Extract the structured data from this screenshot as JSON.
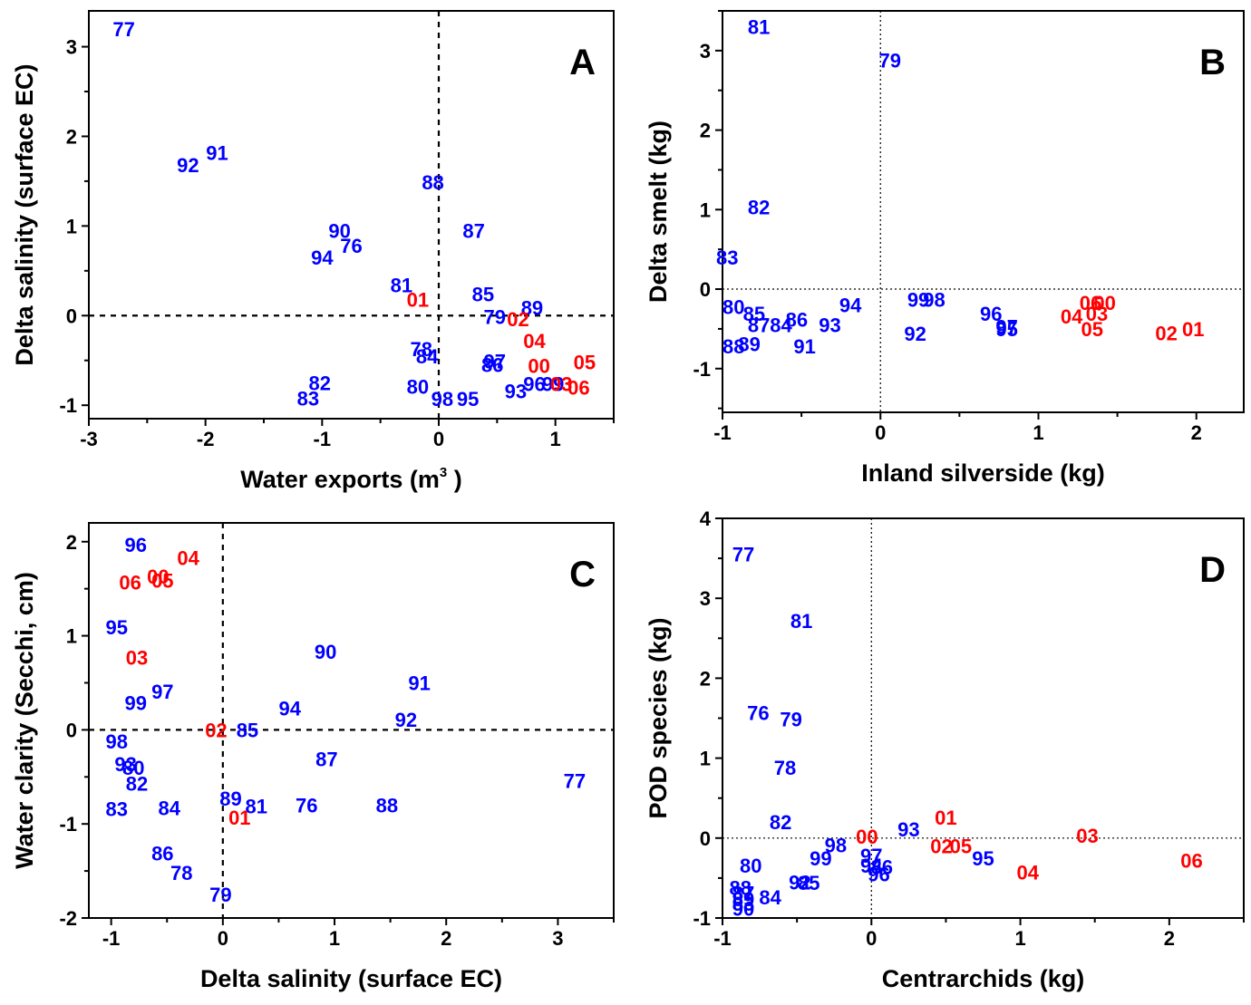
{
  "colors": {
    "early_years": "#0000ff",
    "recent_years": "#ff0000",
    "axis": "#000000"
  },
  "chart_data": [
    {
      "type": "scatter",
      "panel": "A",
      "xlabel": "Water exports (m",
      "xlabel_sup": "3",
      "xlabel_tail": " )",
      "ylabel": "Delta salinity (surface EC)",
      "xlim": [
        -3,
        1.5
      ],
      "ylim": [
        -1.15,
        3.4
      ],
      "xticks": [
        -3,
        -2,
        -1,
        0,
        1
      ],
      "yticks": [
        -1,
        0,
        1,
        2,
        3
      ],
      "zero_line_style": "dashed",
      "points": [
        {
          "label": "77",
          "x": -2.7,
          "y": 3.2,
          "group": "early"
        },
        {
          "label": "92",
          "x": -2.15,
          "y": 1.68,
          "group": "early"
        },
        {
          "label": "91",
          "x": -1.9,
          "y": 1.82,
          "group": "early"
        },
        {
          "label": "88",
          "x": -0.05,
          "y": 1.49,
          "group": "early"
        },
        {
          "label": "90",
          "x": -0.85,
          "y": 0.95,
          "group": "early"
        },
        {
          "label": "87",
          "x": 0.3,
          "y": 0.95,
          "group": "early"
        },
        {
          "label": "76",
          "x": -0.75,
          "y": 0.78,
          "group": "early"
        },
        {
          "label": "94",
          "x": -1.0,
          "y": 0.65,
          "group": "early"
        },
        {
          "label": "81",
          "x": -0.32,
          "y": 0.34,
          "group": "early"
        },
        {
          "label": "01",
          "x": -0.18,
          "y": 0.18,
          "group": "recent"
        },
        {
          "label": "85",
          "x": 0.38,
          "y": 0.24,
          "group": "early"
        },
        {
          "label": "89",
          "x": 0.8,
          "y": 0.09,
          "group": "early"
        },
        {
          "label": "79",
          "x": 0.48,
          "y": -0.01,
          "group": "early"
        },
        {
          "label": "02",
          "x": 0.68,
          "y": -0.04,
          "group": "recent"
        },
        {
          "label": "04",
          "x": 0.82,
          "y": -0.28,
          "group": "recent"
        },
        {
          "label": "78",
          "x": -0.15,
          "y": -0.37,
          "group": "early"
        },
        {
          "label": "84",
          "x": -0.1,
          "y": -0.45,
          "group": "early"
        },
        {
          "label": "97",
          "x": 0.48,
          "y": -0.51,
          "group": "early"
        },
        {
          "label": "86",
          "x": 0.46,
          "y": -0.55,
          "group": "early"
        },
        {
          "label": "00",
          "x": 0.86,
          "y": -0.56,
          "group": "recent"
        },
        {
          "label": "05",
          "x": 1.25,
          "y": -0.52,
          "group": "recent"
        },
        {
          "label": "82",
          "x": -1.02,
          "y": -0.75,
          "group": "early"
        },
        {
          "label": "80",
          "x": -0.18,
          "y": -0.79,
          "group": "early"
        },
        {
          "label": "96",
          "x": 0.82,
          "y": -0.76,
          "group": "early"
        },
        {
          "label": "99",
          "x": 0.98,
          "y": -0.76,
          "group": "early"
        },
        {
          "label": "03",
          "x": 1.05,
          "y": -0.76,
          "group": "recent"
        },
        {
          "label": "06",
          "x": 1.2,
          "y": -0.8,
          "group": "recent"
        },
        {
          "label": "93",
          "x": 0.66,
          "y": -0.84,
          "group": "early"
        },
        {
          "label": "83",
          "x": -1.12,
          "y": -0.92,
          "group": "early"
        },
        {
          "label": "98",
          "x": 0.03,
          "y": -0.93,
          "group": "early"
        },
        {
          "label": "95",
          "x": 0.25,
          "y": -0.93,
          "group": "early"
        }
      ]
    },
    {
      "type": "scatter",
      "panel": "B",
      "xlabel": "Inland silverside (kg)",
      "ylabel": "Delta smelt (kg)",
      "xlim": [
        -1,
        2.3
      ],
      "ylim": [
        -1.55,
        3.5
      ],
      "xticks": [
        -1,
        0,
        1,
        2
      ],
      "yticks": [
        -1,
        0,
        1,
        2,
        3
      ],
      "zero_line_style": "dotted",
      "points": [
        {
          "label": "81",
          "x": -0.77,
          "y": 3.3,
          "group": "early"
        },
        {
          "label": "79",
          "x": 0.06,
          "y": 2.88,
          "group": "early"
        },
        {
          "label": "82",
          "x": -0.77,
          "y": 1.03,
          "group": "early"
        },
        {
          "label": "83",
          "x": -0.97,
          "y": 0.4,
          "group": "early"
        },
        {
          "label": "99",
          "x": 0.24,
          "y": -0.13,
          "group": "early"
        },
        {
          "label": "98",
          "x": 0.34,
          "y": -0.13,
          "group": "early"
        },
        {
          "label": "80",
          "x": -0.93,
          "y": -0.22,
          "group": "early"
        },
        {
          "label": "94",
          "x": -0.19,
          "y": -0.2,
          "group": "early"
        },
        {
          "label": "06",
          "x": 1.33,
          "y": -0.17,
          "group": "recent"
        },
        {
          "label": "00",
          "x": 1.42,
          "y": -0.17,
          "group": "recent"
        },
        {
          "label": "85",
          "x": -0.8,
          "y": -0.31,
          "group": "early"
        },
        {
          "label": "96",
          "x": 0.7,
          "y": -0.31,
          "group": "early"
        },
        {
          "label": "04",
          "x": 1.21,
          "y": -0.34,
          "group": "recent"
        },
        {
          "label": "03",
          "x": 1.37,
          "y": -0.31,
          "group": "recent"
        },
        {
          "label": "86",
          "x": -0.53,
          "y": -0.38,
          "group": "early"
        },
        {
          "label": "87",
          "x": -0.77,
          "y": -0.45,
          "group": "early"
        },
        {
          "label": "84",
          "x": -0.63,
          "y": -0.45,
          "group": "early"
        },
        {
          "label": "93",
          "x": -0.32,
          "y": -0.45,
          "group": "early"
        },
        {
          "label": "97",
          "x": 0.8,
          "y": -0.47,
          "group": "early"
        },
        {
          "label": "95",
          "x": 0.8,
          "y": -0.5,
          "group": "early"
        },
        {
          "label": "05",
          "x": 1.34,
          "y": -0.5,
          "group": "recent"
        },
        {
          "label": "01",
          "x": 1.98,
          "y": -0.5,
          "group": "recent"
        },
        {
          "label": "02",
          "x": 1.81,
          "y": -0.55,
          "group": "recent"
        },
        {
          "label": "92",
          "x": 0.22,
          "y": -0.56,
          "group": "early"
        },
        {
          "label": "89",
          "x": -0.83,
          "y": -0.69,
          "group": "early"
        },
        {
          "label": "91",
          "x": -0.48,
          "y": -0.72,
          "group": "early"
        },
        {
          "label": "88",
          "x": -0.93,
          "y": -0.72,
          "group": "early"
        }
      ]
    },
    {
      "type": "scatter",
      "panel": "C",
      "xlabel": "Delta salinity (surface EC)",
      "ylabel": "Water clarity (Secchi, cm)",
      "xlim": [
        -1.2,
        3.5
      ],
      "ylim": [
        -2,
        2.2
      ],
      "xticks": [
        -1,
        0,
        1,
        2,
        3
      ],
      "yticks": [
        -2,
        -1,
        0,
        1,
        2
      ],
      "zero_line_style": "dashed",
      "points": [
        {
          "label": "96",
          "x": -0.78,
          "y": 1.97,
          "group": "early"
        },
        {
          "label": "04",
          "x": -0.31,
          "y": 1.83,
          "group": "recent"
        },
        {
          "label": "00",
          "x": -0.58,
          "y": 1.63,
          "group": "recent"
        },
        {
          "label": "06",
          "x": -0.83,
          "y": 1.57,
          "group": "recent"
        },
        {
          "label": "05",
          "x": -0.54,
          "y": 1.59,
          "group": "recent"
        },
        {
          "label": "95",
          "x": -0.95,
          "y": 1.09,
          "group": "early"
        },
        {
          "label": "90",
          "x": 0.92,
          "y": 0.83,
          "group": "early"
        },
        {
          "label": "03",
          "x": -0.77,
          "y": 0.77,
          "group": "recent"
        },
        {
          "label": "91",
          "x": 1.76,
          "y": 0.5,
          "group": "early"
        },
        {
          "label": "97",
          "x": -0.54,
          "y": 0.41,
          "group": "early"
        },
        {
          "label": "99",
          "x": -0.78,
          "y": 0.29,
          "group": "early"
        },
        {
          "label": "94",
          "x": 0.6,
          "y": 0.23,
          "group": "early"
        },
        {
          "label": "92",
          "x": 1.64,
          "y": 0.11,
          "group": "early"
        },
        {
          "label": "02",
          "x": -0.06,
          "y": 0.0,
          "group": "recent"
        },
        {
          "label": "85",
          "x": 0.22,
          "y": 0.0,
          "group": "early"
        },
        {
          "label": "98",
          "x": -0.95,
          "y": -0.12,
          "group": "early"
        },
        {
          "label": "87",
          "x": 0.93,
          "y": -0.31,
          "group": "early"
        },
        {
          "label": "93",
          "x": -0.87,
          "y": -0.36,
          "group": "early"
        },
        {
          "label": "80",
          "x": -0.8,
          "y": -0.4,
          "group": "early"
        },
        {
          "label": "82",
          "x": -0.77,
          "y": -0.57,
          "group": "early"
        },
        {
          "label": "77",
          "x": 3.15,
          "y": -0.54,
          "group": "early"
        },
        {
          "label": "89",
          "x": 0.07,
          "y": -0.73,
          "group": "early"
        },
        {
          "label": "76",
          "x": 0.75,
          "y": -0.8,
          "group": "early"
        },
        {
          "label": "88",
          "x": 1.47,
          "y": -0.8,
          "group": "early"
        },
        {
          "label": "81",
          "x": 0.3,
          "y": -0.81,
          "group": "early"
        },
        {
          "label": "83",
          "x": -0.95,
          "y": -0.84,
          "group": "early"
        },
        {
          "label": "84",
          "x": -0.48,
          "y": -0.83,
          "group": "early"
        },
        {
          "label": "01",
          "x": 0.15,
          "y": -0.93,
          "group": "recent"
        },
        {
          "label": "86",
          "x": -0.54,
          "y": -1.31,
          "group": "early"
        },
        {
          "label": "78",
          "x": -0.37,
          "y": -1.52,
          "group": "early"
        },
        {
          "label": "79",
          "x": -0.02,
          "y": -1.75,
          "group": "early"
        }
      ]
    },
    {
      "type": "scatter",
      "panel": "D",
      "xlabel": "Centrarchids (kg)",
      "ylabel": "POD species (kg)",
      "xlim": [
        -1,
        2.5
      ],
      "ylim": [
        -1,
        4
      ],
      "xticks": [
        -1,
        0,
        1,
        2
      ],
      "yticks": [
        -1,
        0,
        1,
        2,
        3,
        4
      ],
      "zero_line_style": "dotted",
      "points": [
        {
          "label": "77",
          "x": -0.86,
          "y": 3.55,
          "group": "early"
        },
        {
          "label": "81",
          "x": -0.47,
          "y": 2.72,
          "group": "early"
        },
        {
          "label": "76",
          "x": -0.76,
          "y": 1.57,
          "group": "early"
        },
        {
          "label": "79",
          "x": -0.54,
          "y": 1.49,
          "group": "early"
        },
        {
          "label": "78",
          "x": -0.58,
          "y": 0.88,
          "group": "early"
        },
        {
          "label": "82",
          "x": -0.61,
          "y": 0.2,
          "group": "early"
        },
        {
          "label": "01",
          "x": 0.5,
          "y": 0.26,
          "group": "recent"
        },
        {
          "label": "93",
          "x": 0.25,
          "y": 0.11,
          "group": "early"
        },
        {
          "label": "03",
          "x": 1.45,
          "y": 0.03,
          "group": "recent"
        },
        {
          "label": "00",
          "x": -0.03,
          "y": 0.02,
          "group": "recent"
        },
        {
          "label": "98",
          "x": -0.24,
          "y": -0.09,
          "group": "early"
        },
        {
          "label": "02",
          "x": 0.47,
          "y": -0.1,
          "group": "recent"
        },
        {
          "label": "05",
          "x": 0.6,
          "y": -0.1,
          "group": "recent"
        },
        {
          "label": "99",
          "x": -0.34,
          "y": -0.25,
          "group": "early"
        },
        {
          "label": "97",
          "x": 0.0,
          "y": -0.22,
          "group": "early"
        },
        {
          "label": "95",
          "x": 0.75,
          "y": -0.25,
          "group": "early"
        },
        {
          "label": "06",
          "x": 2.15,
          "y": -0.28,
          "group": "recent"
        },
        {
          "label": "80",
          "x": -0.81,
          "y": -0.34,
          "group": "early"
        },
        {
          "label": "94",
          "x": 0.0,
          "y": -0.34,
          "group": "early"
        },
        {
          "label": "86",
          "x": 0.07,
          "y": -0.36,
          "group": "early"
        },
        {
          "label": "96",
          "x": 0.05,
          "y": -0.45,
          "group": "early"
        },
        {
          "label": "04",
          "x": 1.05,
          "y": -0.43,
          "group": "recent"
        },
        {
          "label": "92",
          "x": -0.48,
          "y": -0.55,
          "group": "early"
        },
        {
          "label": "85",
          "x": -0.42,
          "y": -0.56,
          "group": "early"
        },
        {
          "label": "88",
          "x": -0.88,
          "y": -0.62,
          "group": "early"
        },
        {
          "label": "87",
          "x": -0.86,
          "y": -0.69,
          "group": "early"
        },
        {
          "label": "89",
          "x": -0.86,
          "y": -0.76,
          "group": "early"
        },
        {
          "label": "84",
          "x": -0.68,
          "y": -0.74,
          "group": "early"
        },
        {
          "label": "83",
          "x": -0.86,
          "y": -0.82,
          "group": "early"
        },
        {
          "label": "90",
          "x": -0.86,
          "y": -0.88,
          "group": "early"
        }
      ]
    }
  ]
}
